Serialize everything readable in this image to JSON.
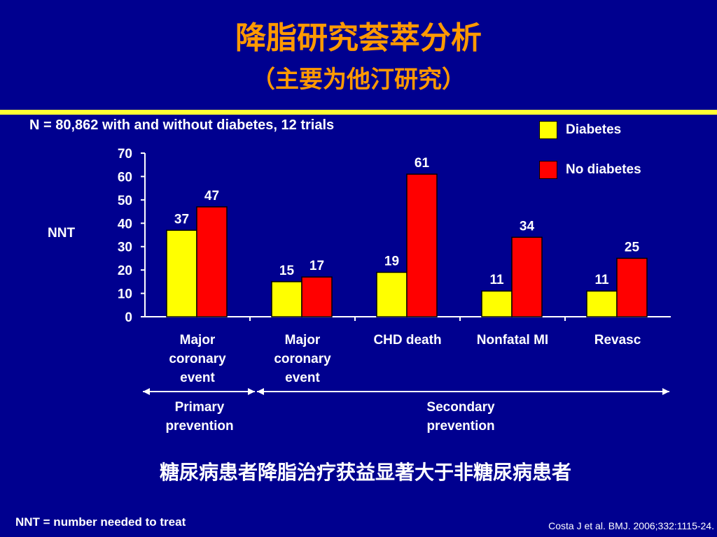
{
  "header": {
    "title": "降脂研究荟萃分析",
    "subtitle": "（主要为他汀研究）"
  },
  "note": "N = 80,862 with and without diabetes, 12 trials",
  "colors": {
    "background": "#00008f",
    "title": "#ff9900",
    "divider": "#ffff33",
    "diabetes": "#ffff00",
    "no_diabetes": "#ff0000"
  },
  "chart_data": {
    "type": "bar",
    "categories": [
      "Major coronary event",
      "Major coronary event",
      "CHD death",
      "Nonfatal MI",
      "Revasc"
    ],
    "series": [
      {
        "name": "Diabetes",
        "color": "#ffff00",
        "values": [
          37,
          15,
          19,
          11,
          11
        ]
      },
      {
        "name": "No diabetes",
        "color": "#ff0000",
        "values": [
          47,
          17,
          61,
          34,
          25
        ]
      }
    ],
    "ylabel": "NNT",
    "ylim": [
      0,
      70
    ],
    "yticks": [
      0,
      10,
      20,
      30,
      40,
      50,
      60,
      70
    ],
    "legend": "top-right",
    "grid": false
  },
  "category_lines": [
    [
      "Major",
      "coronary",
      "event"
    ],
    [
      "Major",
      "coronary",
      "event"
    ],
    [
      "CHD death"
    ],
    [
      "Nonfatal MI"
    ],
    [
      "Revasc"
    ]
  ],
  "groups": {
    "primary": [
      "Primary",
      "prevention"
    ],
    "secondary": [
      "Secondary",
      "prevention"
    ]
  },
  "conclusion": "糖尿病患者降脂治疗获益显著大于非糖尿病患者",
  "footnote": "NNT = number needed to treat",
  "citation": "Costa J et al. BMJ. 2006;332:1115-24."
}
